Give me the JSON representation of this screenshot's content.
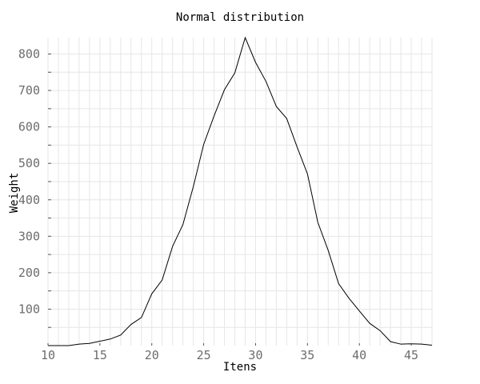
{
  "chart_data": {
    "type": "line",
    "title": "Normal distribution",
    "xlabel": "Itens",
    "ylabel": "Weight",
    "xlim": [
      10,
      47
    ],
    "ylim": [
      0,
      845
    ],
    "x_ticks": [
      10,
      15,
      20,
      25,
      30,
      35,
      40,
      45
    ],
    "y_ticks": [
      100,
      200,
      300,
      400,
      500,
      600,
      700,
      800
    ],
    "grid": true,
    "legend": "none",
    "line_color": "#000000",
    "series": [
      {
        "x": [
          10,
          11,
          12,
          13,
          14,
          15,
          16,
          17,
          18,
          19,
          20,
          21,
          22,
          23,
          24,
          25,
          26,
          27,
          28,
          29,
          30,
          31,
          32,
          33,
          34,
          35,
          36,
          37,
          38,
          39,
          40,
          41,
          42,
          43,
          44,
          45,
          46,
          47
        ],
        "values": [
          0,
          0,
          0,
          4,
          6,
          12,
          18,
          29,
          58,
          77,
          142,
          180,
          272,
          332,
          436,
          552,
          630,
          702,
          748,
          845,
          777,
          725,
          656,
          623,
          545,
          471,
          338,
          261,
          170,
          130,
          95,
          61,
          41,
          11,
          4,
          5,
          4,
          1
        ]
      }
    ]
  }
}
